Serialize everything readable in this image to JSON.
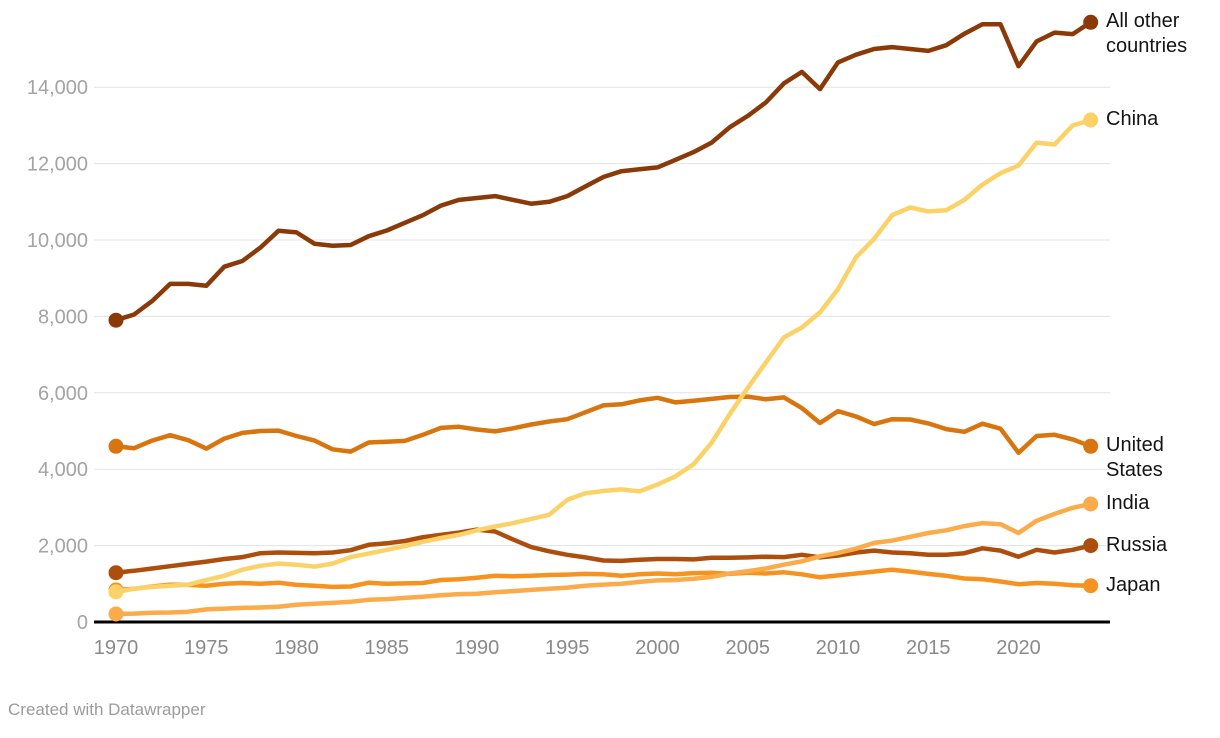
{
  "footer": {
    "credit": "Created with Datawrapper"
  },
  "chart_data": {
    "type": "line",
    "title": "",
    "xlabel": "",
    "ylabel": "",
    "xlim": [
      1970,
      2024
    ],
    "ylim": [
      0,
      15800
    ],
    "grid": "horizontal",
    "legend_position": "right of line ends",
    "x": [
      1970,
      1971,
      1972,
      1973,
      1974,
      1975,
      1976,
      1977,
      1978,
      1979,
      1980,
      1981,
      1982,
      1983,
      1984,
      1985,
      1986,
      1987,
      1988,
      1989,
      1990,
      1991,
      1992,
      1993,
      1994,
      1995,
      1996,
      1997,
      1998,
      1999,
      2000,
      2001,
      2002,
      2003,
      2004,
      2005,
      2006,
      2007,
      2008,
      2009,
      2010,
      2011,
      2012,
      2013,
      2014,
      2015,
      2016,
      2017,
      2018,
      2019,
      2020,
      2021,
      2022,
      2023,
      2024
    ],
    "x_tick_years": [
      1970,
      1975,
      1980,
      1985,
      1990,
      1995,
      2000,
      2005,
      2010,
      2015,
      2020
    ],
    "x_tick_labels": [
      "1970",
      "1975",
      "1980",
      "1985",
      "1990",
      "1995",
      "2000",
      "2005",
      "2010",
      "2015",
      "2020"
    ],
    "y_ticks": [
      0,
      2000,
      4000,
      6000,
      8000,
      10000,
      12000,
      14000
    ],
    "y_tick_labels": [
      "0",
      "2,000",
      "4,000",
      "6,000",
      "8,000",
      "10,000",
      "12,000",
      "14,000"
    ],
    "series": [
      {
        "name": "All other countries",
        "color": "#8a3a09",
        "values": [
          7900,
          8050,
          8400,
          8850,
          8850,
          8800,
          9300,
          9450,
          9800,
          10240,
          10200,
          9900,
          9850,
          9870,
          10100,
          10250,
          10450,
          10650,
          10900,
          11050,
          11100,
          11150,
          11050,
          10950,
          11000,
          11150,
          11400,
          11650,
          11800,
          11850,
          11900,
          12100,
          12300,
          12550,
          12950,
          13250,
          13600,
          14100,
          14400,
          13950,
          14650,
          14850,
          15000,
          15050,
          15000,
          14950,
          15100,
          15400,
          15650,
          15650,
          14550,
          15200,
          15430,
          15390,
          15700
        ]
      },
      {
        "name": "China",
        "color": "#fbd267",
        "values": [
          790,
          870,
          920,
          950,
          980,
          1100,
          1210,
          1370,
          1470,
          1530,
          1500,
          1450,
          1530,
          1700,
          1790,
          1890,
          1990,
          2100,
          2200,
          2280,
          2400,
          2500,
          2590,
          2700,
          2810,
          3200,
          3370,
          3430,
          3470,
          3420,
          3600,
          3815,
          4130,
          4690,
          5440,
          6130,
          6790,
          7450,
          7710,
          8105,
          8715,
          9550,
          10030,
          10650,
          10850,
          10750,
          10780,
          11050,
          11450,
          11750,
          11950,
          12550,
          12500,
          13000,
          13140
        ]
      },
      {
        "name": "United States",
        "color": "#d8750f",
        "values": [
          4600,
          4550,
          4750,
          4890,
          4760,
          4540,
          4800,
          4950,
          5000,
          5010,
          4870,
          4750,
          4520,
          4460,
          4700,
          4720,
          4740,
          4900,
          5080,
          5110,
          5040,
          4990,
          5070,
          5170,
          5250,
          5310,
          5490,
          5670,
          5700,
          5800,
          5870,
          5750,
          5790,
          5840,
          5890,
          5900,
          5830,
          5880,
          5600,
          5210,
          5520,
          5380,
          5180,
          5310,
          5300,
          5200,
          5050,
          4980,
          5190,
          5060,
          4430,
          4870,
          4900,
          4780,
          4600
        ]
      },
      {
        "name": "India",
        "color": "#fbab4a",
        "values": [
          210,
          220,
          240,
          250,
          270,
          330,
          350,
          370,
          380,
          400,
          450,
          480,
          500,
          530,
          580,
          600,
          630,
          660,
          700,
          730,
          740,
          780,
          810,
          840,
          870,
          900,
          950,
          980,
          1000,
          1050,
          1090,
          1100,
          1130,
          1180,
          1270,
          1330,
          1400,
          1500,
          1590,
          1720,
          1810,
          1920,
          2070,
          2130,
          2230,
          2330,
          2400,
          2510,
          2590,
          2560,
          2330,
          2650,
          2830,
          2990,
          3090
        ]
      },
      {
        "name": "Russia",
        "color": "#ad4e0d",
        "values": [
          1290,
          1340,
          1400,
          1460,
          1520,
          1580,
          1650,
          1700,
          1800,
          1820,
          1810,
          1800,
          1820,
          1880,
          2020,
          2060,
          2120,
          2220,
          2280,
          2340,
          2420,
          2370,
          2160,
          1960,
          1850,
          1760,
          1690,
          1610,
          1600,
          1630,
          1650,
          1650,
          1640,
          1680,
          1680,
          1690,
          1710,
          1700,
          1760,
          1690,
          1740,
          1820,
          1870,
          1820,
          1800,
          1760,
          1760,
          1800,
          1930,
          1870,
          1710,
          1890,
          1820,
          1890,
          2000
        ]
      },
      {
        "name": "Japan",
        "color": "#f69320",
        "values": [
          840,
          870,
          930,
          980,
          970,
          950,
          1000,
          1020,
          1000,
          1030,
          970,
          950,
          920,
          930,
          1030,
          1000,
          1010,
          1020,
          1100,
          1120,
          1160,
          1210,
          1200,
          1210,
          1230,
          1240,
          1260,
          1250,
          1210,
          1250,
          1270,
          1250,
          1280,
          1290,
          1260,
          1290,
          1270,
          1300,
          1250,
          1170,
          1220,
          1270,
          1320,
          1370,
          1320,
          1260,
          1210,
          1140,
          1120,
          1060,
          990,
          1020,
          1000,
          960,
          950
        ]
      }
    ]
  }
}
